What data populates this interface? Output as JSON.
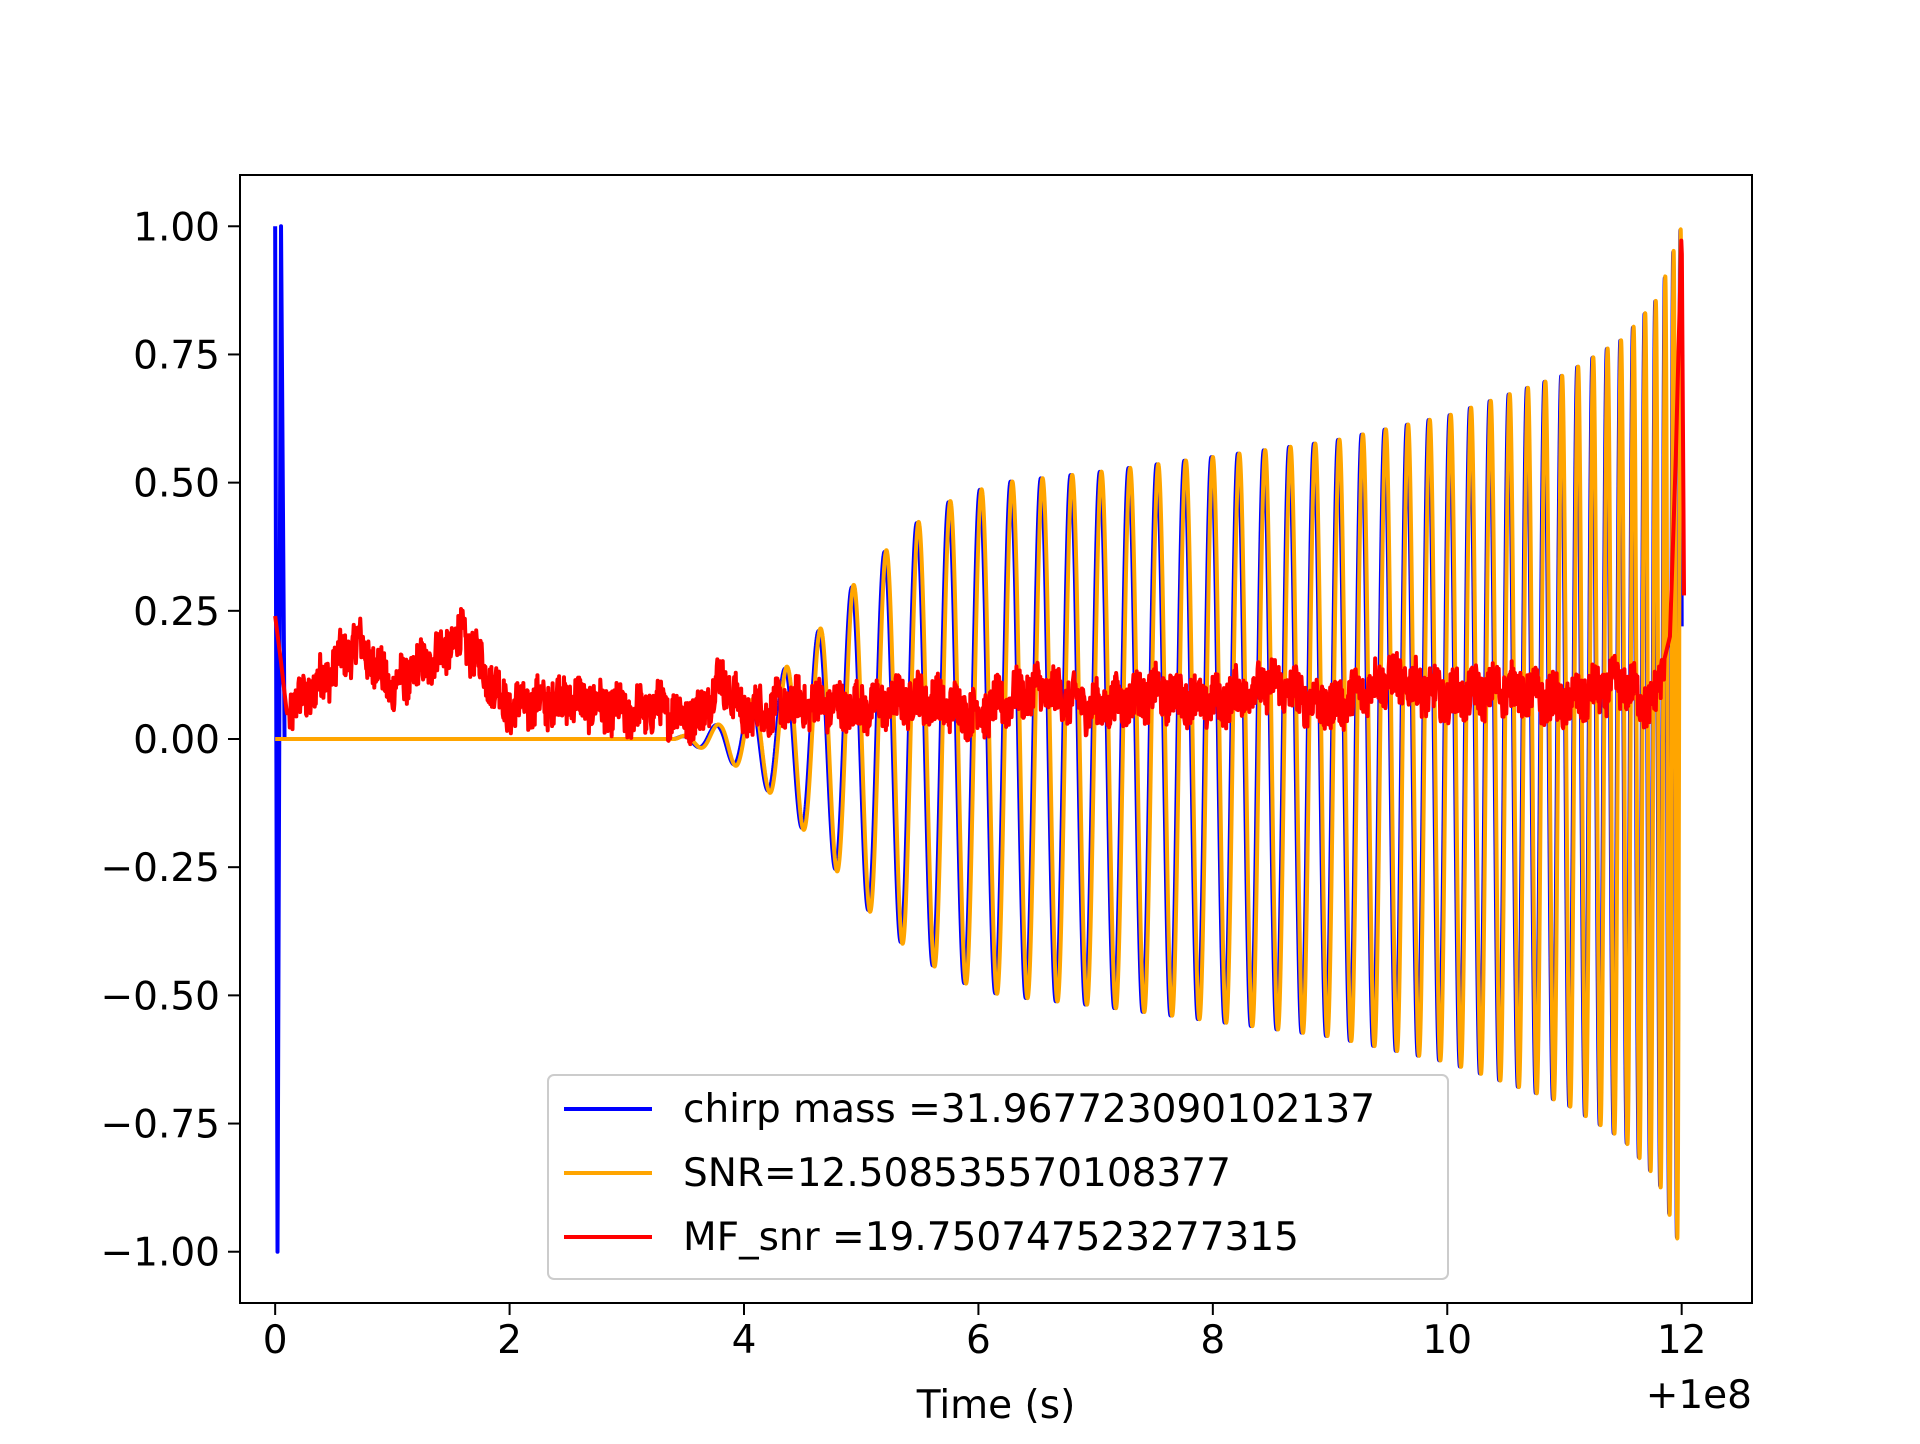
{
  "chart_data": {
    "type": "line",
    "title": "",
    "xlabel": "Time (s)",
    "ylabel": "",
    "x_offset_label": "+1e8",
    "xlim": [
      -0.3,
      12.6
    ],
    "ylim": [
      -1.1,
      1.1
    ],
    "x_ticks": [
      0,
      2,
      4,
      6,
      8,
      10,
      12
    ],
    "x_tick_labels": [
      "0",
      "2",
      "4",
      "6",
      "8",
      "10",
      "12"
    ],
    "y_ticks": [
      -1.0,
      -0.75,
      -0.5,
      -0.25,
      0.0,
      0.25,
      0.5,
      0.75,
      1.0
    ],
    "y_tick_labels": [
      "−1.00",
      "−0.75",
      "−0.50",
      "−0.25",
      "0.00",
      "0.25",
      "0.50",
      "0.75",
      "1.00"
    ],
    "grid": false,
    "legend_position": "lower-center",
    "series": [
      {
        "name": "chirp mass =31.967723090102137",
        "color": "#0000ff",
        "kind": "chirp-waveform",
        "spike_x": [
          0.0,
          0.02,
          0.05
        ],
        "spike_y": [
          1.0,
          -1.0,
          1.0
        ],
        "start_x": 3.4,
        "end_x": 12.0,
        "envelope": {
          "x": [
            3.4,
            3.8,
            4.2,
            4.6,
            5.0,
            5.4,
            5.8,
            6.2,
            6.6,
            7.0,
            8.0,
            9.0,
            10.0,
            11.0,
            11.5,
            11.8,
            12.0
          ],
          "amp": [
            0.0,
            0.03,
            0.1,
            0.2,
            0.32,
            0.41,
            0.47,
            0.5,
            0.51,
            0.52,
            0.55,
            0.58,
            0.63,
            0.71,
            0.78,
            0.86,
            1.0
          ]
        }
      },
      {
        "name": "SNR=12.508535570108377",
        "color": "#ffa500",
        "kind": "chirp-waveform",
        "start_x": 0.0,
        "end_x": 12.0,
        "envelope": {
          "x": [
            0.0,
            3.4,
            3.8,
            4.2,
            4.6,
            5.0,
            5.4,
            5.8,
            6.2,
            6.6,
            7.0,
            8.0,
            9.0,
            10.0,
            11.0,
            11.5,
            11.8,
            12.0
          ],
          "amp": [
            0.0,
            0.0,
            0.03,
            0.1,
            0.2,
            0.32,
            0.41,
            0.47,
            0.5,
            0.51,
            0.52,
            0.55,
            0.58,
            0.63,
            0.71,
            0.78,
            0.86,
            1.0
          ]
        }
      },
      {
        "name": "MF_snr =19.750747523277315",
        "color": "#ff0000",
        "kind": "noisy-trace",
        "x": [
          0.0,
          0.05,
          0.1,
          0.3,
          0.7,
          1.0,
          1.6,
          2.0,
          2.5,
          3.0,
          3.3,
          3.6,
          3.8,
          4.0,
          4.5,
          5.0,
          5.5,
          6.0,
          6.5,
          7.0,
          7.5,
          8.0,
          8.5,
          9.0,
          9.5,
          10.0,
          10.5,
          11.0,
          11.5,
          11.75,
          11.9,
          11.95,
          12.0,
          12.02
        ],
        "y": [
          0.24,
          0.15,
          0.05,
          0.09,
          0.19,
          0.1,
          0.2,
          0.06,
          0.08,
          0.05,
          0.06,
          0.04,
          0.12,
          0.05,
          0.07,
          0.06,
          0.08,
          0.05,
          0.1,
          0.06,
          0.09,
          0.07,
          0.11,
          0.06,
          0.12,
          0.08,
          0.1,
          0.07,
          0.11,
          0.06,
          0.2,
          0.55,
          1.0,
          0.28
        ]
      }
    ]
  }
}
